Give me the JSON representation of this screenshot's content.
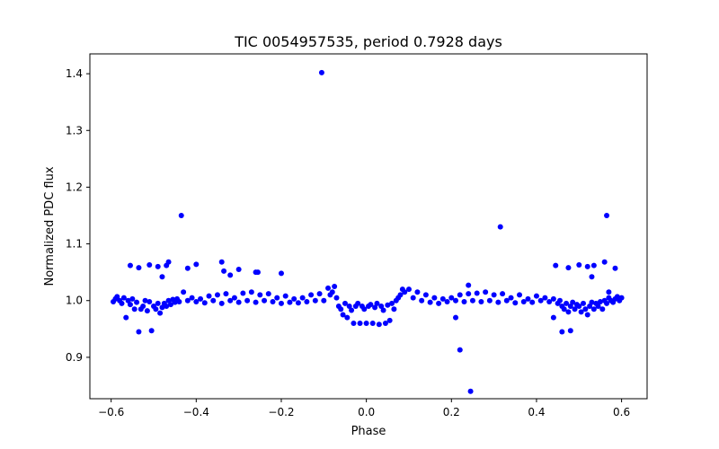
{
  "chart_data": {
    "type": "scatter",
    "title": "TIC 0054957535, period 0.7928 days",
    "xlabel": "Phase",
    "ylabel": "Normalized PDC flux",
    "xlim": [
      -0.65,
      0.66
    ],
    "ylim": [
      0.827,
      1.435
    ],
    "xticks": [
      -0.6,
      -0.4,
      -0.2,
      0.0,
      0.2,
      0.4,
      0.6
    ],
    "xtick_labels": [
      "−0.6",
      "−0.4",
      "−0.2",
      "0.0",
      "0.2",
      "0.4",
      "0.6"
    ],
    "yticks": [
      0.9,
      1.0,
      1.1,
      1.2,
      1.3,
      1.4
    ],
    "ytick_labels": [
      "0.9",
      "1.0",
      "1.1",
      "1.2",
      "1.3",
      "1.4"
    ],
    "grid": false,
    "legend": null,
    "marker_color": "#0000ff",
    "series": [
      {
        "points": [
          [
            -0.595,
            0.998
          ],
          [
            -0.59,
            1.003
          ],
          [
            -0.586,
            1.007
          ],
          [
            -0.58,
            1.0
          ],
          [
            -0.575,
            0.995
          ],
          [
            -0.57,
            1.005
          ],
          [
            -0.565,
            0.97
          ],
          [
            -0.56,
            1.0
          ],
          [
            -0.555,
            0.993
          ],
          [
            -0.55,
            1.003
          ],
          [
            -0.545,
            0.985
          ],
          [
            -0.54,
            0.997
          ],
          [
            -0.535,
            0.945
          ],
          [
            -0.53,
            0.985
          ],
          [
            -0.525,
            0.99
          ],
          [
            -0.52,
            1.0
          ],
          [
            -0.515,
            0.982
          ],
          [
            -0.51,
            0.998
          ],
          [
            -0.505,
            0.947
          ],
          [
            -0.5,
            0.99
          ],
          [
            -0.495,
            0.985
          ],
          [
            -0.49,
            0.995
          ],
          [
            -0.485,
            0.978
          ],
          [
            -0.48,
            0.988
          ],
          [
            -0.475,
            0.995
          ],
          [
            -0.47,
            0.99
          ],
          [
            -0.465,
            1.0
          ],
          [
            -0.46,
            0.993
          ],
          [
            -0.455,
            1.002
          ],
          [
            -0.45,
            0.997
          ],
          [
            -0.445,
            1.003
          ],
          [
            -0.44,
            0.998
          ],
          [
            -0.43,
            1.015
          ],
          [
            -0.42,
            1.0
          ],
          [
            -0.41,
            1.005
          ],
          [
            -0.4,
            0.998
          ],
          [
            -0.39,
            1.003
          ],
          [
            -0.38,
            0.996
          ],
          [
            -0.37,
            1.008
          ],
          [
            -0.36,
            1.0
          ],
          [
            -0.35,
            1.01
          ],
          [
            -0.34,
            0.995
          ],
          [
            -0.33,
            1.012
          ],
          [
            -0.32,
            1.0
          ],
          [
            -0.31,
            1.005
          ],
          [
            -0.3,
            0.997
          ],
          [
            -0.29,
            1.013
          ],
          [
            -0.28,
            1.0
          ],
          [
            -0.27,
            1.015
          ],
          [
            -0.26,
            0.997
          ],
          [
            -0.25,
            1.01
          ],
          [
            -0.24,
            1.0
          ],
          [
            -0.23,
            1.012
          ],
          [
            -0.22,
            0.998
          ],
          [
            -0.21,
            1.005
          ],
          [
            -0.2,
            0.995
          ],
          [
            -0.19,
            1.008
          ],
          [
            -0.18,
            0.997
          ],
          [
            -0.17,
            1.003
          ],
          [
            -0.16,
            0.996
          ],
          [
            -0.15,
            1.005
          ],
          [
            -0.14,
            0.998
          ],
          [
            -0.13,
            1.01
          ],
          [
            -0.12,
            1.0
          ],
          [
            -0.11,
            1.012
          ],
          [
            -0.1,
            1.0
          ],
          [
            -0.09,
            1.022
          ],
          [
            -0.085,
            1.01
          ],
          [
            -0.08,
            1.015
          ],
          [
            -0.075,
            1.025
          ],
          [
            -0.07,
            1.005
          ],
          [
            -0.065,
            0.99
          ],
          [
            -0.06,
            0.985
          ],
          [
            -0.055,
            0.975
          ],
          [
            -0.05,
            0.995
          ],
          [
            -0.045,
            0.97
          ],
          [
            -0.04,
            0.99
          ],
          [
            -0.035,
            0.983
          ],
          [
            -0.03,
            0.96
          ],
          [
            -0.025,
            0.99
          ],
          [
            -0.02,
            0.995
          ],
          [
            -0.015,
            0.96
          ],
          [
            -0.01,
            0.99
          ],
          [
            -0.005,
            0.985
          ],
          [
            0.0,
            0.96
          ],
          [
            0.005,
            0.99
          ],
          [
            0.01,
            0.993
          ],
          [
            0.015,
            0.96
          ],
          [
            0.02,
            0.988
          ],
          [
            0.025,
            0.995
          ],
          [
            0.03,
            0.958
          ],
          [
            0.035,
            0.99
          ],
          [
            0.04,
            0.983
          ],
          [
            0.045,
            0.96
          ],
          [
            0.05,
            0.992
          ],
          [
            0.055,
            0.965
          ],
          [
            0.06,
            0.995
          ],
          [
            0.065,
            0.985
          ],
          [
            0.07,
            1.0
          ],
          [
            0.075,
            1.005
          ],
          [
            0.08,
            1.01
          ],
          [
            0.085,
            1.02
          ],
          [
            0.09,
            1.015
          ],
          [
            0.1,
            1.02
          ],
          [
            0.11,
            1.005
          ],
          [
            0.12,
            1.015
          ],
          [
            0.13,
            1.0
          ],
          [
            0.14,
            1.01
          ],
          [
            0.15,
            0.997
          ],
          [
            0.16,
            1.005
          ],
          [
            0.17,
            0.995
          ],
          [
            0.18,
            1.003
          ],
          [
            0.19,
            0.998
          ],
          [
            0.2,
            1.005
          ],
          [
            0.21,
            1.0
          ],
          [
            0.22,
            1.01
          ],
          [
            0.23,
            0.998
          ],
          [
            0.24,
            1.012
          ],
          [
            0.25,
            1.0
          ],
          [
            0.26,
            1.013
          ],
          [
            0.27,
            0.998
          ],
          [
            0.28,
            1.015
          ],
          [
            0.29,
            1.0
          ],
          [
            0.3,
            1.01
          ],
          [
            0.31,
            0.997
          ],
          [
            0.32,
            1.012
          ],
          [
            0.33,
            1.0
          ],
          [
            0.34,
            1.005
          ],
          [
            0.35,
            0.996
          ],
          [
            0.36,
            1.01
          ],
          [
            0.37,
            0.998
          ],
          [
            0.38,
            1.003
          ],
          [
            0.39,
            0.997
          ],
          [
            0.4,
            1.008
          ],
          [
            0.41,
            1.0
          ],
          [
            0.42,
            1.005
          ],
          [
            0.43,
            0.998
          ],
          [
            0.44,
            1.003
          ],
          [
            0.45,
            0.995
          ],
          [
            0.455,
            1.0
          ],
          [
            0.46,
            0.99
          ],
          [
            0.465,
            0.985
          ],
          [
            0.47,
            0.995
          ],
          [
            0.475,
            0.98
          ],
          [
            0.48,
            0.99
          ],
          [
            0.485,
            0.997
          ],
          [
            0.49,
            0.985
          ],
          [
            0.495,
            0.993
          ],
          [
            0.5,
            0.99
          ],
          [
            0.505,
            0.98
          ],
          [
            0.51,
            0.995
          ],
          [
            0.515,
            0.985
          ],
          [
            0.52,
            0.975
          ],
          [
            0.525,
            0.99
          ],
          [
            0.53,
            0.997
          ],
          [
            0.535,
            0.985
          ],
          [
            0.54,
            0.995
          ],
          [
            0.545,
            0.99
          ],
          [
            0.55,
            0.998
          ],
          [
            0.555,
            0.985
          ],
          [
            0.56,
            1.0
          ],
          [
            0.565,
            0.995
          ],
          [
            0.57,
            1.005
          ],
          [
            0.575,
            1.0
          ],
          [
            0.58,
            0.997
          ],
          [
            0.585,
            1.003
          ],
          [
            0.59,
            1.007
          ],
          [
            0.595,
            1.0
          ],
          [
            0.6,
            1.005
          ],
          [
            -0.555,
            1.062
          ],
          [
            -0.535,
            1.058
          ],
          [
            -0.51,
            1.063
          ],
          [
            -0.49,
            1.06
          ],
          [
            -0.48,
            1.042
          ],
          [
            -0.47,
            1.062
          ],
          [
            -0.465,
            1.068
          ],
          [
            -0.435,
            1.15
          ],
          [
            -0.42,
            1.057
          ],
          [
            -0.4,
            1.064
          ],
          [
            -0.34,
            1.068
          ],
          [
            -0.335,
            1.052
          ],
          [
            -0.32,
            1.045
          ],
          [
            -0.3,
            1.055
          ],
          [
            -0.26,
            1.05
          ],
          [
            -0.255,
            1.05
          ],
          [
            -0.2,
            1.048
          ],
          [
            -0.105,
            1.402
          ],
          [
            0.21,
            0.97
          ],
          [
            0.22,
            0.913
          ],
          [
            0.24,
            1.027
          ],
          [
            0.245,
            0.84
          ],
          [
            0.315,
            1.13
          ],
          [
            0.44,
            0.97
          ],
          [
            0.445,
            1.062
          ],
          [
            0.46,
            0.945
          ],
          [
            0.475,
            1.058
          ],
          [
            0.48,
            0.947
          ],
          [
            0.5,
            1.063
          ],
          [
            0.52,
            1.06
          ],
          [
            0.53,
            1.042
          ],
          [
            0.535,
            1.062
          ],
          [
            0.56,
            1.068
          ],
          [
            0.565,
            1.15
          ],
          [
            0.57,
            1.015
          ],
          [
            0.585,
            1.057
          ]
        ]
      }
    ]
  }
}
